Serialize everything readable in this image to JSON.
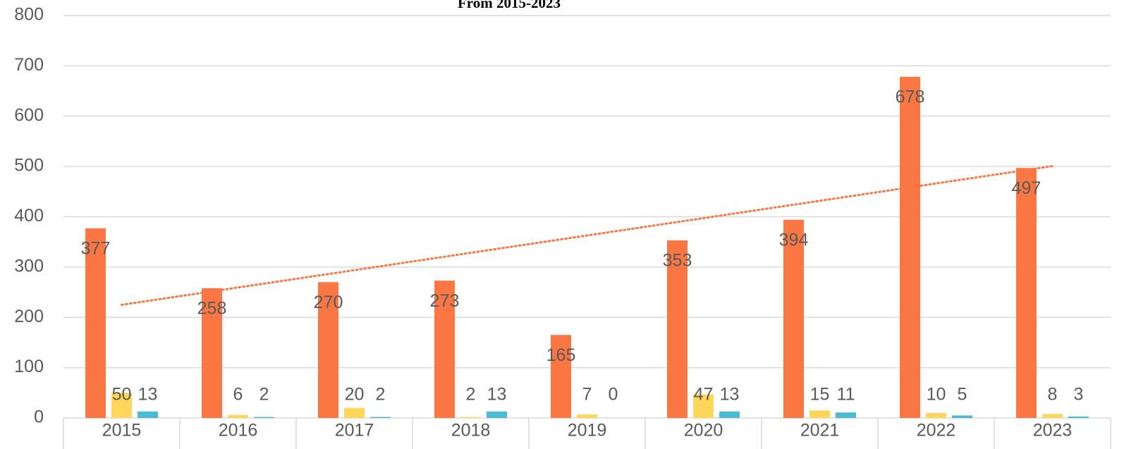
{
  "chart_data": {
    "type": "bar",
    "title": "From 2015-2023",
    "categories": [
      "2015",
      "2016",
      "2017",
      "2018",
      "2019",
      "2020",
      "2021",
      "2022",
      "2023"
    ],
    "series": [
      {
        "color": "#fa7643",
        "values": [
          377,
          258,
          270,
          273,
          165,
          353,
          394,
          678,
          497
        ]
      },
      {
        "color": "#ffd55a",
        "values": [
          50,
          6,
          20,
          2,
          7,
          47,
          15,
          10,
          8
        ]
      },
      {
        "color": "#4bbbd5",
        "values": [
          13,
          2,
          2,
          13,
          0,
          13,
          11,
          5,
          3
        ]
      }
    ],
    "ylim": [
      0,
      800
    ],
    "yticks": [
      0,
      100,
      200,
      300,
      400,
      500,
      600,
      700,
      800
    ],
    "grid": true,
    "trendline": {
      "series": 0,
      "color": "#fa7643"
    }
  }
}
